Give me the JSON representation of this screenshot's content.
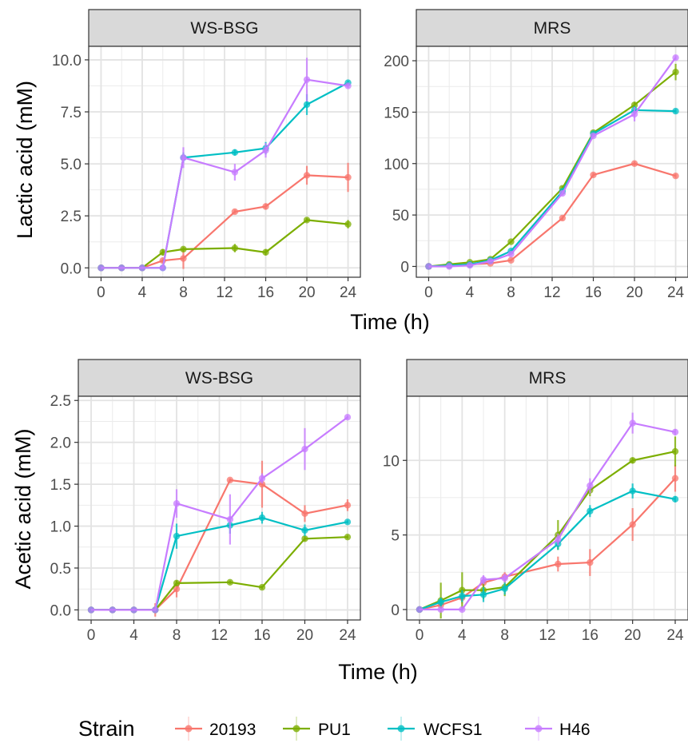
{
  "figure": {
    "xlabel": "Time (h)",
    "legend_title": "Strain",
    "legend_position": "bottom",
    "strains": [
      {
        "name": "20193",
        "color": "#F8766D"
      },
      {
        "name": "PU1",
        "color": "#7CAE00"
      },
      {
        "name": "WCFS1",
        "color": "#00BFC4"
      },
      {
        "name": "H46",
        "color": "#C77CFF"
      }
    ]
  },
  "chart_data": [
    {
      "type": "line",
      "panel": "WS-BSG",
      "xlabel": "Time (h)",
      "ylabel": "Lactic acid (mM)",
      "xlim": [
        -1.2,
        25.2
      ],
      "ylim": [
        -0.45,
        10.65
      ],
      "xticks": [
        0,
        4,
        8,
        12,
        16,
        20,
        24
      ],
      "yticks": [
        0.0,
        2.5,
        5.0,
        7.5,
        10.0
      ],
      "ytick_labels": [
        "0.0",
        "2.5",
        "5.0",
        "7.5",
        "10.0"
      ],
      "grid": true,
      "series": [
        {
          "name": "20193",
          "x": [
            0,
            2,
            4,
            6,
            8,
            13,
            16,
            20,
            24
          ],
          "y": [
            0,
            0,
            0,
            0.35,
            0.45,
            2.7,
            2.95,
            4.45,
            4.35
          ],
          "err": [
            0,
            0,
            0,
            0.1,
            0.5,
            0.1,
            0.15,
            0.45,
            0.7
          ]
        },
        {
          "name": "PU1",
          "x": [
            0,
            2,
            4,
            6,
            8,
            13,
            16,
            20,
            24
          ],
          "y": [
            0,
            0,
            0,
            0.75,
            0.9,
            0.95,
            0.75,
            2.3,
            2.1
          ],
          "err": [
            0,
            0,
            0,
            0.15,
            0.1,
            0.2,
            0.15,
            0.1,
            0.2
          ]
        },
        {
          "name": "WCFS1",
          "x": [
            0,
            2,
            4,
            6,
            8,
            13,
            16,
            20,
            24
          ],
          "y": [
            0,
            0,
            0,
            0,
            5.3,
            5.55,
            5.75,
            7.85,
            8.9
          ],
          "err": [
            0,
            0,
            0,
            0,
            0.25,
            0.15,
            0.3,
            0.5,
            0.1
          ]
        },
        {
          "name": "H46",
          "x": [
            0,
            2,
            4,
            6,
            8,
            13,
            16,
            20,
            24
          ],
          "y": [
            0,
            0,
            0,
            0,
            5.3,
            4.6,
            5.65,
            9.05,
            8.75
          ],
          "err": [
            0,
            0,
            0,
            0,
            0.5,
            0.4,
            0.35,
            1.05,
            0.1
          ]
        }
      ]
    },
    {
      "type": "line",
      "panel": "MRS",
      "xlabel": "Time (h)",
      "ylabel": "",
      "xlim": [
        -1.2,
        25.2
      ],
      "ylim": [
        -10.5,
        214
      ],
      "xticks": [
        0,
        4,
        8,
        12,
        16,
        20,
        24
      ],
      "yticks": [
        0,
        50,
        100,
        150,
        200
      ],
      "ytick_labels": [
        "0",
        "50",
        "100",
        "150",
        "200"
      ],
      "grid": true,
      "series": [
        {
          "name": "20193",
          "x": [
            0,
            2,
            4,
            6,
            8,
            13,
            16,
            20,
            24
          ],
          "y": [
            0,
            1,
            2,
            3,
            6,
            47,
            89,
            100,
            88
          ],
          "err": [
            0,
            0,
            0,
            0,
            1,
            2,
            2,
            2,
            2
          ]
        },
        {
          "name": "PU1",
          "x": [
            0,
            2,
            4,
            6,
            8,
            13,
            16,
            20,
            24
          ],
          "y": [
            0,
            2,
            4,
            7,
            24,
            76,
            130,
            157,
            189
          ],
          "err": [
            0,
            0,
            0,
            0,
            1,
            2,
            2,
            3,
            8
          ]
        },
        {
          "name": "WCFS1",
          "x": [
            0,
            2,
            4,
            6,
            8,
            13,
            16,
            20,
            24
          ],
          "y": [
            0,
            1,
            2,
            6,
            15,
            73,
            129,
            152,
            151
          ],
          "err": [
            0,
            0,
            0,
            0,
            1,
            2,
            2,
            4,
            2
          ]
        },
        {
          "name": "H46",
          "x": [
            0,
            2,
            4,
            6,
            8,
            13,
            16,
            20,
            24
          ],
          "y": [
            0,
            0,
            1,
            5,
            12,
            71,
            127,
            148,
            203
          ],
          "err": [
            0,
            0,
            0,
            0,
            1,
            2,
            2,
            7,
            2
          ]
        }
      ]
    },
    {
      "type": "line",
      "panel": "WS-BSG",
      "xlabel": "Time (h)",
      "ylabel": "Acetic acid (mM)",
      "xlim": [
        -1.2,
        25.2
      ],
      "ylim": [
        -0.12,
        2.55
      ],
      "xticks": [
        0,
        4,
        8,
        12,
        16,
        20,
        24
      ],
      "yticks": [
        0.0,
        0.5,
        1.0,
        1.5,
        2.0,
        2.5
      ],
      "ytick_labels": [
        "0.0",
        "0.5",
        "1.0",
        "1.5",
        "2.0",
        "2.5"
      ],
      "grid": true,
      "series": [
        {
          "name": "20193",
          "x": [
            0,
            2,
            4,
            6,
            8,
            13,
            16,
            20,
            24
          ],
          "y": [
            0,
            0,
            0,
            0,
            0.25,
            1.55,
            1.5,
            1.15,
            1.25
          ],
          "err": [
            0,
            0,
            0,
            0.08,
            0.1,
            0.02,
            0.28,
            0.1,
            0.07
          ]
        },
        {
          "name": "PU1",
          "x": [
            0,
            2,
            4,
            6,
            8,
            13,
            16,
            20,
            24
          ],
          "y": [
            0,
            0,
            0,
            0,
            0.32,
            0.33,
            0.27,
            0.85,
            0.87
          ],
          "err": [
            0,
            0,
            0,
            0,
            0.03,
            0.02,
            0.02,
            0.03,
            0.02
          ]
        },
        {
          "name": "WCFS1",
          "x": [
            0,
            2,
            4,
            6,
            8,
            13,
            16,
            20,
            24
          ],
          "y": [
            0,
            0,
            0,
            0,
            0.88,
            1.01,
            1.1,
            0.95,
            1.05
          ],
          "err": [
            0,
            0,
            0,
            0,
            0.15,
            0.1,
            0.07,
            0.07,
            0.02
          ]
        },
        {
          "name": "H46",
          "x": [
            0,
            2,
            4,
            6,
            8,
            13,
            16,
            20,
            24
          ],
          "y": [
            0,
            0,
            0,
            0,
            1.27,
            1.08,
            1.57,
            1.92,
            2.3
          ],
          "err": [
            0,
            0,
            0,
            0,
            0.17,
            0.3,
            0.06,
            0.25,
            0.02
          ]
        }
      ]
    },
    {
      "type": "line",
      "panel": "MRS",
      "xlabel": "Time (h)",
      "ylabel": "",
      "xlim": [
        -1.2,
        25.2
      ],
      "ylim": [
        -0.7,
        14.3
      ],
      "xticks": [
        0,
        4,
        8,
        12,
        16,
        20,
        24
      ],
      "yticks": [
        0,
        5,
        10
      ],
      "ytick_labels": [
        "0",
        "5",
        "10"
      ],
      "grid": true,
      "series": [
        {
          "name": "20193",
          "x": [
            0,
            2,
            4,
            6,
            8,
            13,
            16,
            20,
            24
          ],
          "y": [
            0,
            0.3,
            0.8,
            1.8,
            2.2,
            3.05,
            3.15,
            5.7,
            8.8
          ],
          "err": [
            0,
            0.3,
            0.4,
            0.3,
            0.3,
            0.5,
            0.9,
            1.1,
            0.9
          ]
        },
        {
          "name": "PU1",
          "x": [
            0,
            2,
            4,
            6,
            8,
            13,
            16,
            20,
            24
          ],
          "y": [
            0,
            0.6,
            1.3,
            1.3,
            1.5,
            5.0,
            8.0,
            10.0,
            10.6
          ],
          "err": [
            0,
            1.2,
            1.2,
            0.6,
            0.6,
            1.0,
            0.4,
            0.2,
            1.0
          ]
        },
        {
          "name": "WCFS1",
          "x": [
            0,
            2,
            4,
            6,
            8,
            13,
            16,
            20,
            24
          ],
          "y": [
            0,
            0.5,
            0.9,
            1.0,
            1.4,
            4.4,
            6.6,
            7.95,
            7.4
          ],
          "err": [
            0,
            0.3,
            0.4,
            0.5,
            0.4,
            0.4,
            0.4,
            0.5,
            0.2
          ]
        },
        {
          "name": "H46",
          "x": [
            0,
            2,
            4,
            6,
            8,
            13,
            16,
            20,
            24
          ],
          "y": [
            0,
            0,
            0,
            2.0,
            2.1,
            4.7,
            8.3,
            12.5,
            11.9
          ],
          "err": [
            0,
            0.1,
            0.1,
            0.3,
            0.3,
            0.4,
            0.5,
            0.7,
            0.2
          ]
        }
      ]
    }
  ]
}
